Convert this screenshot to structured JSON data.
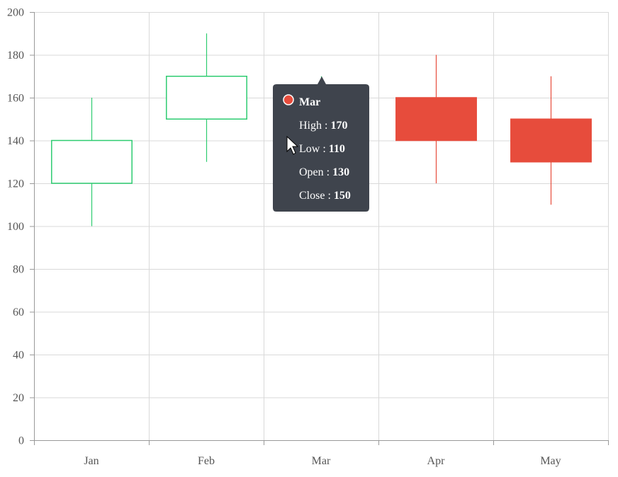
{
  "chart_data": {
    "type": "candlestick",
    "categories": [
      "Jan",
      "Feb",
      "Mar",
      "Apr",
      "May"
    ],
    "series": [
      {
        "points": [
          {
            "x": "Jan",
            "open": 120,
            "close": 140,
            "high": 160,
            "low": 100
          },
          {
            "x": "Feb",
            "open": 150,
            "close": 170,
            "high": 190,
            "low": 130
          },
          {
            "x": "Mar",
            "open": 130,
            "close": 150,
            "high": 170,
            "low": 110
          },
          {
            "x": "Apr",
            "open": 160,
            "close": 140,
            "high": 180,
            "low": 120
          },
          {
            "x": "May",
            "open": 150,
            "close": 130,
            "high": 170,
            "low": 110
          }
        ]
      }
    ],
    "ylim": [
      0,
      200
    ],
    "yticks": [
      0,
      20,
      40,
      60,
      80,
      100,
      120,
      140,
      160,
      180,
      200
    ],
    "grid": true,
    "colors": {
      "bullish": "#2ecc71",
      "bearish": "#e74c3c",
      "grid": "#d9d9d9",
      "axis": "#999999"
    }
  },
  "tooltip": {
    "visible": true,
    "category": "Mar",
    "marker_color": "#e74c3c",
    "background": "#3f444d",
    "rows": [
      {
        "label": "High : ",
        "value": "170"
      },
      {
        "label": "Low : ",
        "value": "110"
      },
      {
        "label": "Open : ",
        "value": "130"
      },
      {
        "label": "Close : ",
        "value": "150"
      }
    ]
  },
  "cursor": {
    "icon": "mouse-pointer-icon"
  }
}
